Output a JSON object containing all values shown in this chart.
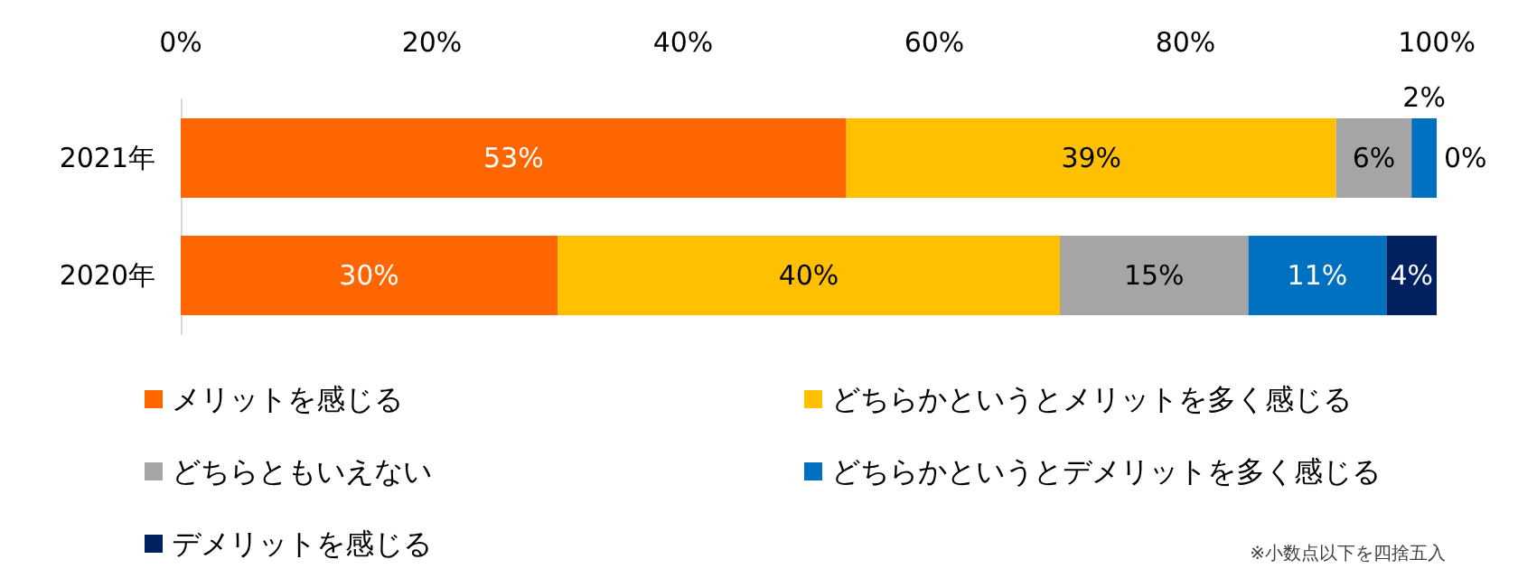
{
  "chart_data": {
    "type": "bar",
    "orientation": "horizontal",
    "stacked": true,
    "categories": [
      "2021年",
      "2020年"
    ],
    "series": [
      {
        "name": "メリットを感じる",
        "color": "#ff6600",
        "values": [
          53,
          30
        ],
        "value_labels": [
          "53%",
          "30%"
        ]
      },
      {
        "name": "どちらかというとメリットを多く感じる",
        "color": "#ffc000",
        "values": [
          39,
          40
        ],
        "value_labels": [
          "39%",
          "40%"
        ]
      },
      {
        "name": "どちらともいえない",
        "color": "#a5a5a5",
        "values": [
          6,
          15
        ],
        "value_labels": [
          "6%",
          "15%"
        ]
      },
      {
        "name": "どちらかというとデメリットを多く感じる",
        "color": "#0070c0",
        "values": [
          2,
          11
        ],
        "value_labels": [
          "2%",
          "11%"
        ]
      },
      {
        "name": "デメリットを感じる",
        "color": "#002060",
        "values": [
          0,
          4
        ],
        "value_labels": [
          "0%",
          "4%"
        ]
      }
    ],
    "xlim": [
      0,
      100
    ],
    "xticks": [
      {
        "value": 0,
        "label": "0%"
      },
      {
        "value": 20,
        "label": "20%"
      },
      {
        "value": 40,
        "label": "40%"
      },
      {
        "value": 60,
        "label": "60%"
      },
      {
        "value": 80,
        "label": "80%"
      },
      {
        "value": 100,
        "label": "100%"
      }
    ],
    "grid": false,
    "legend": "bottom",
    "annotations": [
      "※小数点以下を四捨五入"
    ]
  }
}
